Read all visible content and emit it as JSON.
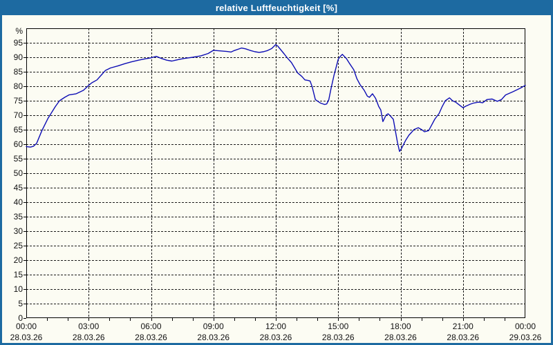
{
  "window": {
    "title": "relative Luftfeuchtigkeit [%]"
  },
  "colors": {
    "titlebar_bg": "#1d6aa1",
    "window_border": "#1d6aa1",
    "content_bg": "#fcfcf3",
    "line": "#0c0cb4",
    "grid": "#1a1a1a",
    "axis": "#000000",
    "text": "#111111",
    "title_text": "#ffffff"
  },
  "chart_data": {
    "type": "line",
    "title": "relative Luftfeuchtigkeit [%]",
    "xlabel": "",
    "ylabel": "%",
    "ylim": [
      0,
      100
    ],
    "xlim_hours": [
      0,
      24
    ],
    "grid": true,
    "legend_position": "none",
    "y_tick_values": [
      0,
      5,
      10,
      15,
      20,
      25,
      30,
      35,
      40,
      45,
      50,
      55,
      60,
      65,
      70,
      75,
      80,
      85,
      90,
      95
    ],
    "x_ticks": [
      {
        "hour": 0,
        "time": "00:00",
        "date": "28.03.26"
      },
      {
        "hour": 3,
        "time": "03:00",
        "date": "28.03.26"
      },
      {
        "hour": 6,
        "time": "06:00",
        "date": "28.03.26"
      },
      {
        "hour": 9,
        "time": "09:00",
        "date": "28.03.26"
      },
      {
        "hour": 12,
        "time": "12:00",
        "date": "28.03.26"
      },
      {
        "hour": 15,
        "time": "15:00",
        "date": "28.03.26"
      },
      {
        "hour": 18,
        "time": "18:00",
        "date": "28.03.26"
      },
      {
        "hour": 21,
        "time": "21:00",
        "date": "28.03.26"
      },
      {
        "hour": 24,
        "time": "00:00",
        "date": "29.03.26"
      }
    ],
    "x_minor_tick_every_hours": 1,
    "series": [
      {
        "name": "relative Luftfeuchtigkeit",
        "unit": "%",
        "color": "#0c0cb4",
        "points": [
          [
            0.0,
            59.2
          ],
          [
            0.2,
            59.0
          ],
          [
            0.35,
            59.3
          ],
          [
            0.5,
            60.3
          ],
          [
            0.75,
            64.7
          ],
          [
            1.05,
            69.0
          ],
          [
            1.4,
            73.0
          ],
          [
            1.6,
            75.0
          ],
          [
            1.85,
            76.2
          ],
          [
            2.05,
            77.0
          ],
          [
            2.4,
            77.4
          ],
          [
            2.75,
            78.6
          ],
          [
            3.0,
            80.3
          ],
          [
            3.15,
            81.2
          ],
          [
            3.4,
            82.2
          ],
          [
            3.65,
            84.2
          ],
          [
            3.8,
            85.4
          ],
          [
            4.05,
            86.3
          ],
          [
            4.4,
            87.0
          ],
          [
            4.75,
            87.8
          ],
          [
            5.05,
            88.4
          ],
          [
            5.4,
            89.0
          ],
          [
            5.75,
            89.5
          ],
          [
            6.0,
            89.8
          ],
          [
            6.25,
            90.3
          ],
          [
            6.5,
            89.6
          ],
          [
            6.75,
            89.0
          ],
          [
            7.0,
            88.7
          ],
          [
            7.3,
            89.2
          ],
          [
            7.6,
            89.6
          ],
          [
            8.0,
            90.0
          ],
          [
            8.4,
            90.5
          ],
          [
            8.75,
            91.3
          ],
          [
            9.0,
            92.4
          ],
          [
            9.35,
            92.2
          ],
          [
            9.65,
            92.0
          ],
          [
            9.85,
            91.8
          ],
          [
            10.0,
            92.3
          ],
          [
            10.35,
            93.2
          ],
          [
            10.55,
            92.9
          ],
          [
            10.75,
            92.4
          ],
          [
            11.0,
            91.9
          ],
          [
            11.2,
            91.7
          ],
          [
            11.4,
            91.9
          ],
          [
            11.6,
            92.3
          ],
          [
            11.8,
            93.0
          ],
          [
            12.0,
            94.4
          ],
          [
            12.1,
            93.8
          ],
          [
            12.25,
            92.5
          ],
          [
            12.4,
            91.2
          ],
          [
            12.55,
            89.8
          ],
          [
            12.75,
            88.2
          ],
          [
            12.9,
            86.4
          ],
          [
            13.05,
            84.6
          ],
          [
            13.25,
            83.4
          ],
          [
            13.4,
            82.2
          ],
          [
            13.55,
            82.0
          ],
          [
            13.65,
            81.8
          ],
          [
            13.75,
            79.8
          ],
          [
            13.9,
            75.4
          ],
          [
            14.0,
            74.9
          ],
          [
            14.15,
            74.2
          ],
          [
            14.35,
            73.7
          ],
          [
            14.45,
            73.9
          ],
          [
            14.55,
            75.4
          ],
          [
            14.65,
            79.0
          ],
          [
            14.8,
            83.8
          ],
          [
            14.9,
            86.5
          ],
          [
            15.0,
            89.3
          ],
          [
            15.1,
            90.3
          ],
          [
            15.2,
            91.0
          ],
          [
            15.4,
            89.5
          ],
          [
            15.55,
            87.8
          ],
          [
            15.75,
            85.7
          ],
          [
            15.9,
            82.6
          ],
          [
            16.05,
            80.6
          ],
          [
            16.25,
            78.6
          ],
          [
            16.4,
            76.6
          ],
          [
            16.5,
            76.2
          ],
          [
            16.65,
            77.4
          ],
          [
            16.8,
            75.8
          ],
          [
            16.95,
            73.0
          ],
          [
            17.05,
            71.8
          ],
          [
            17.15,
            67.8
          ],
          [
            17.3,
            70.0
          ],
          [
            17.4,
            70.5
          ],
          [
            17.5,
            69.8
          ],
          [
            17.65,
            68.6
          ],
          [
            17.75,
            64.6
          ],
          [
            17.85,
            60.6
          ],
          [
            17.95,
            57.5
          ],
          [
            18.05,
            58.6
          ],
          [
            18.25,
            61.4
          ],
          [
            18.4,
            63.1
          ],
          [
            18.65,
            65.1
          ],
          [
            18.85,
            65.7
          ],
          [
            19.0,
            65.1
          ],
          [
            19.15,
            64.3
          ],
          [
            19.35,
            64.7
          ],
          [
            19.5,
            66.7
          ],
          [
            19.65,
            68.7
          ],
          [
            19.85,
            70.6
          ],
          [
            20.0,
            73.0
          ],
          [
            20.15,
            75.0
          ],
          [
            20.35,
            76.0
          ],
          [
            20.5,
            75.0
          ],
          [
            20.65,
            74.5
          ],
          [
            20.85,
            73.4
          ],
          [
            21.0,
            72.6
          ],
          [
            21.15,
            73.2
          ],
          [
            21.35,
            73.8
          ],
          [
            21.5,
            74.2
          ],
          [
            21.75,
            74.5
          ],
          [
            21.95,
            74.3
          ],
          [
            22.15,
            75.4
          ],
          [
            22.4,
            75.6
          ],
          [
            22.65,
            74.8
          ],
          [
            22.85,
            75.4
          ],
          [
            23.05,
            77.0
          ],
          [
            23.4,
            78.1
          ],
          [
            23.75,
            79.3
          ],
          [
            24.0,
            80.3
          ]
        ]
      }
    ]
  }
}
